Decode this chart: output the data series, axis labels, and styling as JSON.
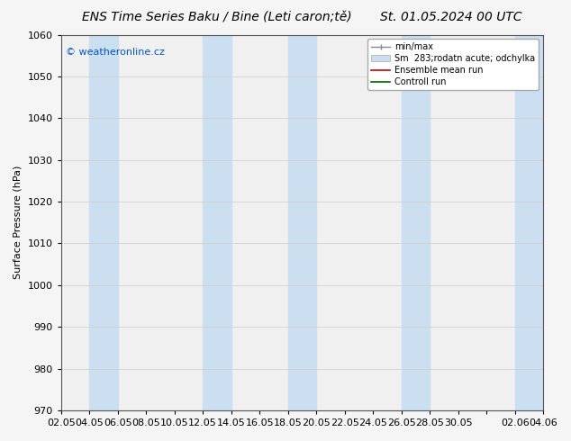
{
  "title_left": "ENS Time Series Baku / Bine (Leti caron;tě)",
  "title_right": "St. 01.05.2024 00 UTC",
  "ylabel": "Surface Pressure (hPa)",
  "ylim": [
    970,
    1060
  ],
  "yticks": [
    970,
    980,
    990,
    1000,
    1010,
    1020,
    1030,
    1040,
    1050,
    1060
  ],
  "xtick_labels": [
    "02.05",
    "04.05",
    "06.05",
    "08.05",
    "10.05",
    "12.05",
    "14.05",
    "16.05",
    "18.05",
    "20.05",
    "22.05",
    "24.05",
    "26.05",
    "28.05",
    "30.05",
    "",
    "02.06",
    "04.06"
  ],
  "watermark": "© weatheronline.cz",
  "legend_entries": [
    "min/max",
    "Sm  283;rodatn acute; odchylka",
    "Ensemble mean run",
    "Controll run"
  ],
  "band_color": "#ccdff0",
  "background_color": "#f5f5f5",
  "plot_bg_color": "#f0f0f0",
  "ensemble_mean_color": "#cc0000",
  "control_run_color": "#006600",
  "title_fontsize": 10,
  "axis_fontsize": 8,
  "tick_fontsize": 8,
  "shaded_band_indices": [
    1,
    5,
    8,
    12,
    16
  ],
  "num_ticks": 18
}
